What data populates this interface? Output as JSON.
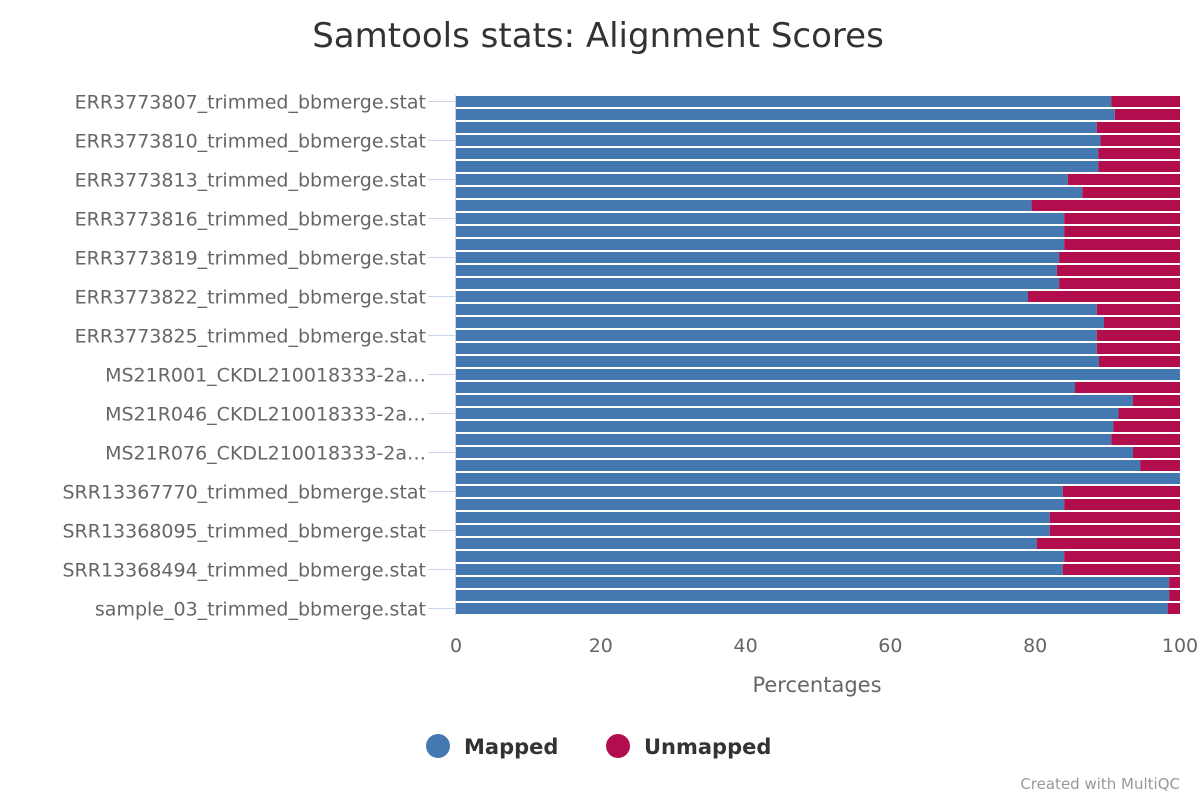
{
  "chart_data": {
    "type": "bar",
    "orientation": "horizontal",
    "stacked": true,
    "title": "Samtools stats: Alignment Scores",
    "xlabel": "Percentages",
    "ylabel": "",
    "xlim": [
      0,
      100
    ],
    "x_ticks": [
      "0",
      "20",
      "40",
      "60",
      "80",
      "100"
    ],
    "category_labels": [
      "ERR3773807_trimmed_bbmerge.stat",
      "ERR3773810_trimmed_bbmerge.stat",
      "ERR3773813_trimmed_bbmerge.stat",
      "ERR3773816_trimmed_bbmerge.stat",
      "ERR3773819_trimmed_bbmerge.stat",
      "ERR3773822_trimmed_bbmerge.stat",
      "ERR3773825_trimmed_bbmerge.stat",
      "MS21R001_CKDL210018333-2a…",
      "MS21R046_CKDL210018333-2a…",
      "MS21R076_CKDL210018333-2a…",
      "SRR13367770_trimmed_bbmerge.stat",
      "SRR13368095_trimmed_bbmerge.stat",
      "SRR13368494_trimmed_bbmerge.stat",
      "sample_03_trimmed_bbmerge.stat"
    ],
    "label_every": 3,
    "bar_count": 40,
    "series": [
      {
        "name": "Mapped",
        "color": "#4379b0",
        "values": [
          90.5,
          91.0,
          88.5,
          89.0,
          88.7,
          88.7,
          84.5,
          86.5,
          79.5,
          84.0,
          84.0,
          84.0,
          83.3,
          83.0,
          83.3,
          79.0,
          88.5,
          89.5,
          88.5,
          88.5,
          88.8,
          100.0,
          85.5,
          93.5,
          91.5,
          90.8,
          90.5,
          93.5,
          94.5,
          100.0,
          83.8,
          84.0,
          82.0,
          82.0,
          80.2,
          84.0,
          83.8,
          98.5,
          98.5,
          98.3
        ]
      },
      {
        "name": "Unmapped",
        "color": "#b20e4d",
        "values": [
          9.5,
          9.0,
          11.5,
          11.0,
          11.3,
          11.3,
          15.5,
          13.5,
          20.5,
          16.0,
          16.0,
          16.0,
          16.7,
          17.0,
          16.7,
          21.0,
          11.5,
          10.5,
          11.5,
          11.5,
          11.2,
          0.0,
          14.5,
          6.5,
          8.5,
          9.2,
          9.5,
          6.5,
          5.5,
          0.0,
          16.2,
          16.0,
          18.0,
          18.0,
          19.8,
          16.0,
          16.2,
          1.5,
          1.5,
          1.7
        ]
      }
    ],
    "legend": {
      "position": "bottom",
      "items": [
        "Mapped",
        "Unmapped"
      ]
    }
  },
  "credits": "Created with MultiQC"
}
